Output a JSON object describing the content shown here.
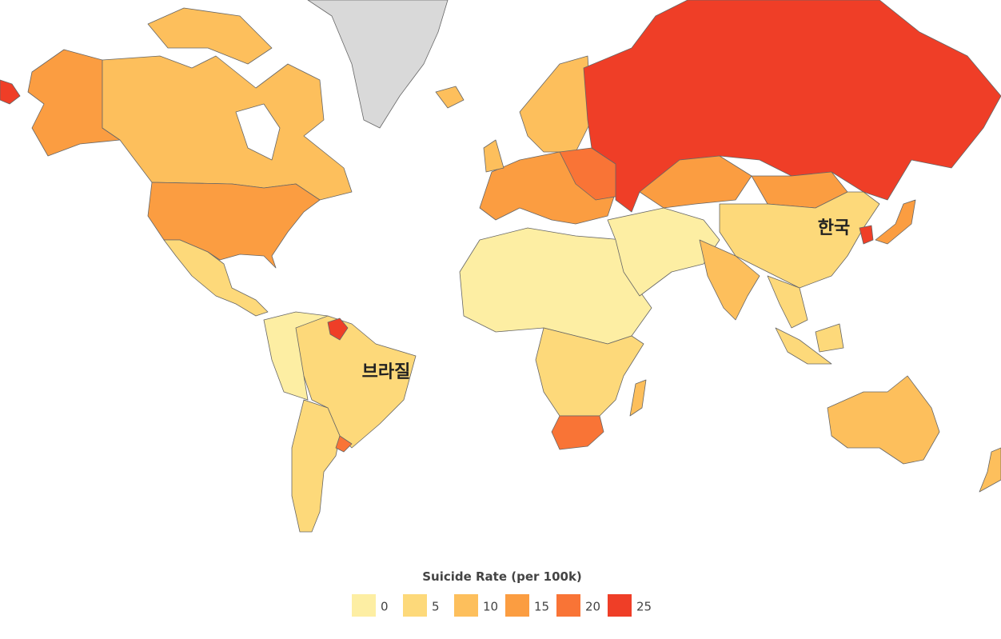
{
  "map": {
    "annotations": [
      "브라질",
      "한국"
    ]
  },
  "legend": {
    "title": "Suicide Rate (per 100k)",
    "items": [
      {
        "value": 0,
        "color": "#fdeea3"
      },
      {
        "value": 5,
        "color": "#fdd97a"
      },
      {
        "value": 10,
        "color": "#fdbf5c"
      },
      {
        "value": 15,
        "color": "#fb9d41"
      },
      {
        "value": 20,
        "color": "#f97436"
      },
      {
        "value": 25,
        "color": "#ef3e27"
      }
    ]
  }
}
